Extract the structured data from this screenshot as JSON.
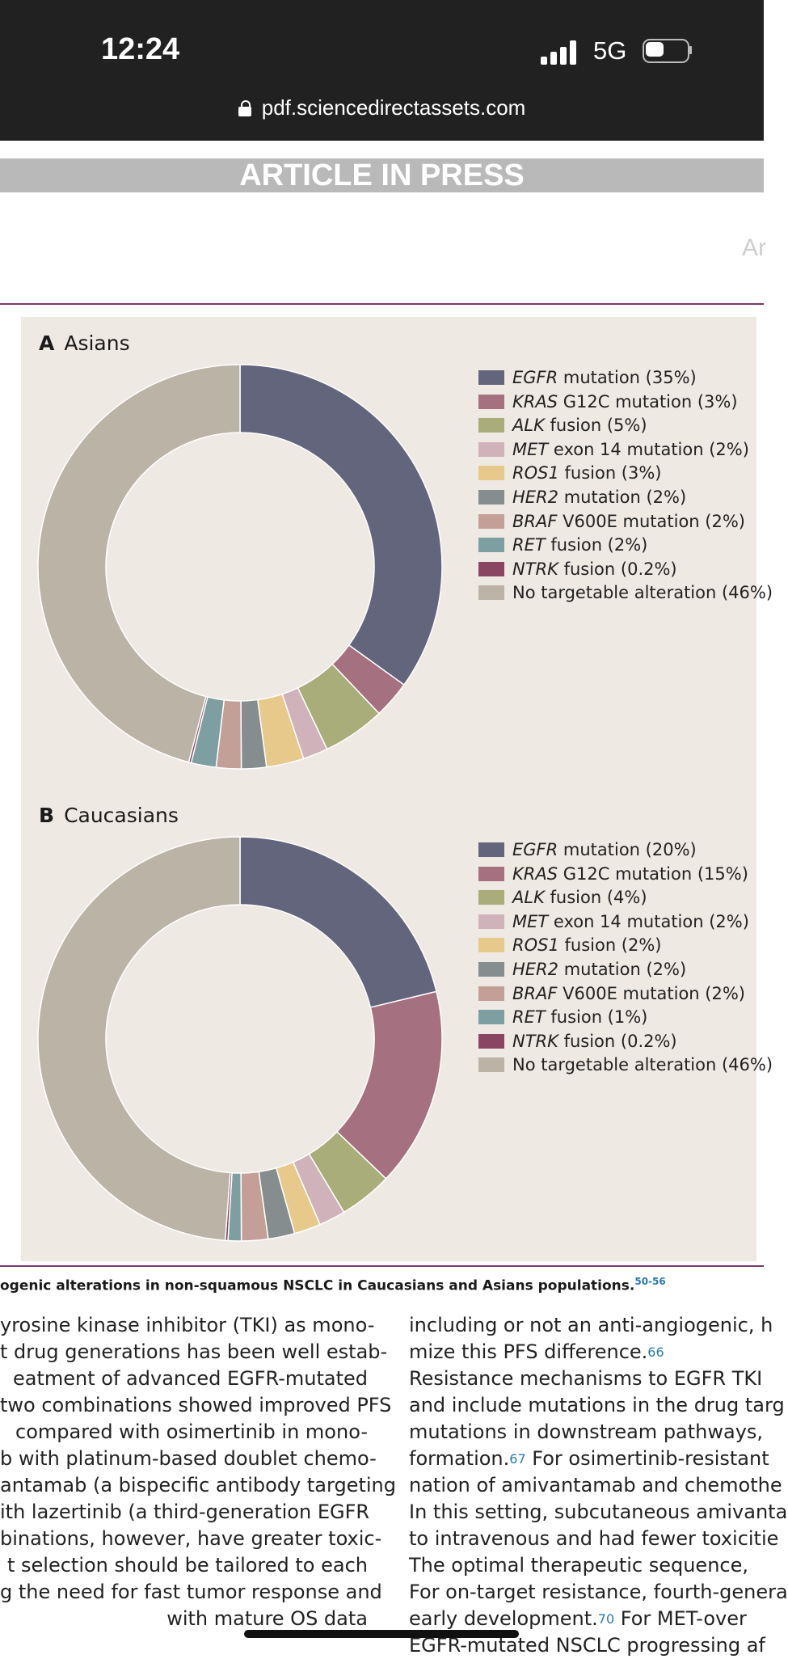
{
  "status_bar": {
    "time": "12:24",
    "network": "5G",
    "url": "pdf.sciencedirectassets.com"
  },
  "banner": {
    "text": "ARTICLE IN PRESS"
  },
  "header_fragment": "Ar",
  "chart_data": [
    {
      "type": "pie",
      "style": "donut",
      "title": "Asians",
      "panel_letter": "A",
      "categories": [
        "EGFR mutation",
        "KRAS G12C mutation",
        "ALK fusion",
        "MET exon 14 mutation",
        "ROS1 fusion",
        "HER2 mutation",
        "BRAF V600E mutation",
        "RET fusion",
        "NTRK fusion",
        "No targetable alteration"
      ],
      "values": [
        35,
        3,
        5,
        2,
        3,
        2,
        2,
        2,
        0.2,
        46
      ],
      "legend_position": "right",
      "legend": [
        {
          "italic": "EGFR",
          "rest": " mutation (35%)"
        },
        {
          "italic": "KRAS",
          "rest": " G12C mutation (3%)"
        },
        {
          "italic": "ALK",
          "rest": " fusion (5%)"
        },
        {
          "italic": "MET",
          "rest": " exon 14 mutation (2%)"
        },
        {
          "italic": "ROS1",
          "rest": " fusion (3%)"
        },
        {
          "italic": "HER2",
          "rest": " mutation (2%)"
        },
        {
          "italic": "BRAF",
          "rest": " V600E mutation (2%)"
        },
        {
          "italic": "RET",
          "rest": " fusion (2%)"
        },
        {
          "italic": "NTRK",
          "rest": " fusion (0.2%)"
        },
        {
          "italic": "",
          "rest": "No targetable alteration (46%)"
        }
      ]
    },
    {
      "type": "pie",
      "style": "donut",
      "title": "Caucasians",
      "panel_letter": "B",
      "categories": [
        "EGFR mutation",
        "KRAS G12C mutation",
        "ALK fusion",
        "MET exon 14 mutation",
        "ROS1 fusion",
        "HER2 mutation",
        "BRAF V600E mutation",
        "RET fusion",
        "NTRK fusion",
        "No targetable alteration"
      ],
      "values": [
        20,
        15,
        4,
        2,
        2,
        2,
        2,
        1,
        0.2,
        46
      ],
      "legend_position": "right",
      "legend": [
        {
          "italic": "EGFR",
          "rest": " mutation (20%)"
        },
        {
          "italic": "KRAS",
          "rest": " G12C mutation (15%)"
        },
        {
          "italic": "ALK",
          "rest": " fusion (4%)"
        },
        {
          "italic": "MET",
          "rest": " exon 14 mutation (2%)"
        },
        {
          "italic": "ROS1",
          "rest": " fusion (2%)"
        },
        {
          "italic": "HER2",
          "rest": " mutation (2%)"
        },
        {
          "italic": "BRAF",
          "rest": " V600E mutation (2%)"
        },
        {
          "italic": "RET",
          "rest": " fusion (1%)"
        },
        {
          "italic": "NTRK",
          "rest": " fusion (0.2%)"
        },
        {
          "italic": "",
          "rest": "No targetable alteration (46%)"
        }
      ]
    }
  ],
  "colors": [
    "#63657d",
    "#a5707f",
    "#a8ad7a",
    "#cfb2ba",
    "#e6c98b",
    "#858d8e",
    "#c49f97",
    "#7e9fa2",
    "#8a4563",
    "#bab3a6"
  ],
  "caption": {
    "text": "ogenic alterations in non-squamous NSCLC in Caucasians and Asians populations.",
    "refs": "50-56"
  },
  "left_column": [
    "yrosine kinase inhibitor (TKI) as mono-",
    "t drug generations has been well estab-",
    "eatment of advanced EGFR-mutated",
    "two combinations showed improved PFS",
    "compared with osimertinib in mono-",
    "b with platinum-based doublet chemo-",
    "antamab (a bispecific antibody targeting",
    "ith lazertinib (a third-generation EGFR",
    "binations, however, have greater toxic-",
    "t selection should be tailored to each",
    "g the need for fast tumor response and",
    "with mature OS data"
  ],
  "right_column": [
    {
      "text": "including or not an anti-angiogenic, h",
      "ref": ""
    },
    {
      "text": "mize this PFS difference.",
      "ref": "66"
    },
    {
      "text": "  Resistance mechanisms to EGFR TKI",
      "ref": ""
    },
    {
      "text": "and include mutations in the drug targ",
      "ref": ""
    },
    {
      "text": "mutations in downstream pathways,",
      "ref": ""
    },
    {
      "text": "formation.",
      "ref": "67",
      "after": " For osimertinib-resistant"
    },
    {
      "text": "nation of amivantamab and chemothe",
      "ref": ""
    },
    {
      "text": "In this setting, subcutaneous amivanta",
      "ref": ""
    },
    {
      "text": "to intravenous and had fewer toxicitie",
      "ref": ""
    },
    {
      "text": "  The optimal therapeutic sequence,",
      "ref": ""
    },
    {
      "text": "For on-target resistance, fourth-genera",
      "ref": ""
    },
    {
      "text": "early development.",
      "ref": "70",
      "after": "  For MET-over"
    },
    {
      "text": "EGFR-mutated NSCLC progressing af",
      "ref": ""
    }
  ]
}
